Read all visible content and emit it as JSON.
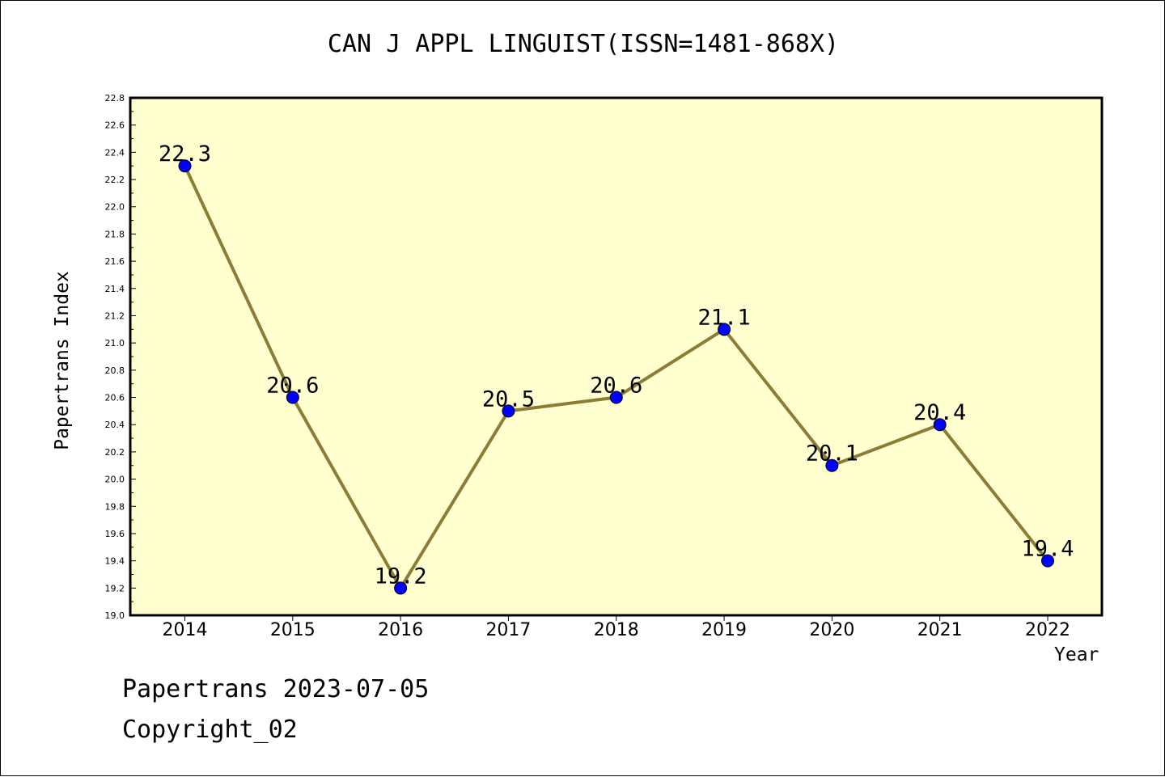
{
  "chart_data": {
    "type": "line",
    "title": "CAN J APPL LINGUIST(ISSN=1481-868X)",
    "xlabel": "Year",
    "ylabel": "Papertrans Index",
    "categories": [
      "2014",
      "2015",
      "2016",
      "2017",
      "2018",
      "2019",
      "2020",
      "2021",
      "2022"
    ],
    "values": [
      22.3,
      20.6,
      19.2,
      20.5,
      20.6,
      21.1,
      20.1,
      20.4,
      19.4
    ],
    "data_labels": [
      "22.3",
      "20.6",
      "19.2",
      "20.5",
      "20.6",
      "21.1",
      "20.1",
      "20.4",
      "19.4"
    ],
    "ylim": [
      19.0,
      22.8
    ],
    "yticks": [
      "19.0",
      "19.2",
      "19.4",
      "19.6",
      "19.8",
      "20.0",
      "20.2",
      "20.4",
      "20.6",
      "20.8",
      "21.0",
      "21.2",
      "21.4",
      "21.6",
      "21.8",
      "22.0",
      "22.2",
      "22.4",
      "22.6",
      "22.8"
    ],
    "grid": false,
    "colors": {
      "plot_background": "#ffffd0",
      "line": "#8b7d35",
      "marker": "#0000ff",
      "axes": "#000000"
    }
  },
  "footer": {
    "line1": "Papertrans 2023-07-05",
    "line2": "Copyright_02"
  }
}
